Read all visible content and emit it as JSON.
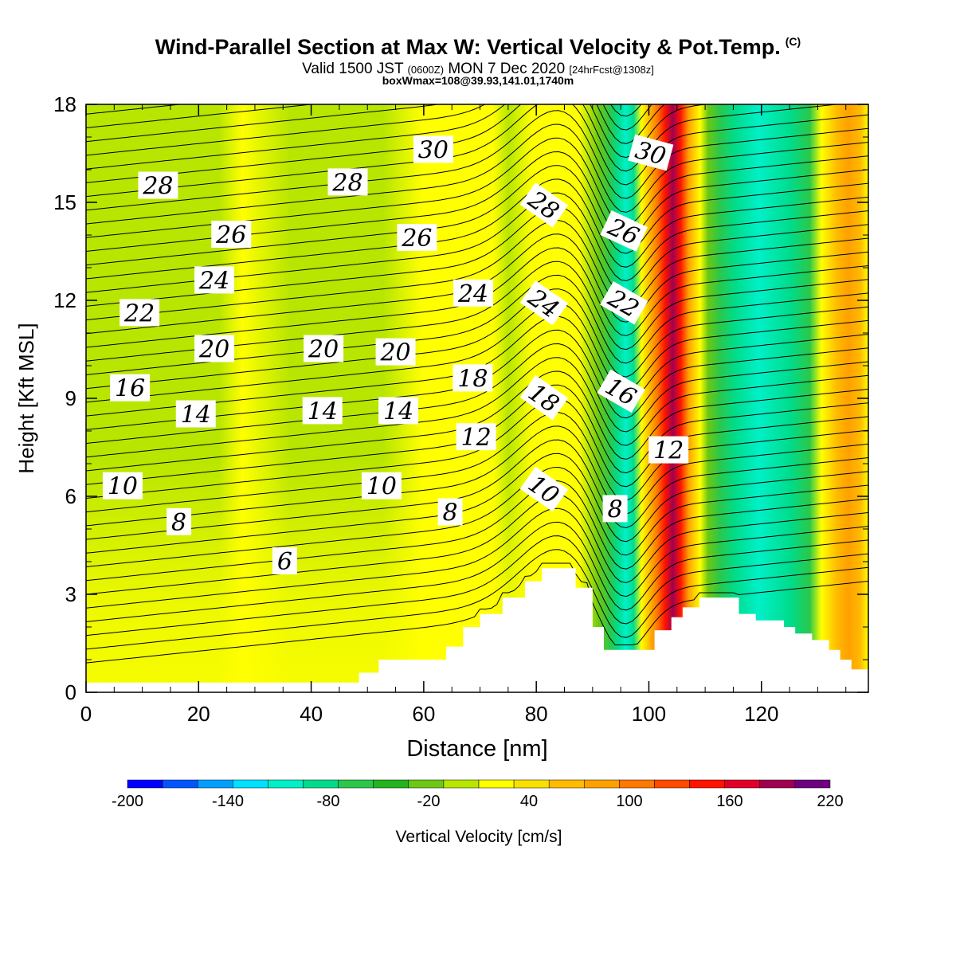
{
  "chart_data": {
    "type": "heatmap",
    "title": "Wind-Parallel Section at Max W: Vertical Velocity & Pot.Temp.",
    "copyright": "(C)",
    "subtitle_main": "Valid 1500 JST",
    "subtitle_utc": "(0600Z)",
    "subtitle_date": "MON 7 Dec 2020",
    "subtitle_fcst": "[24hrFcst@1308z]",
    "subtitle2": "boxWmax=108@39.93,141.01,1740m",
    "xlabel": "Distance [nm]",
    "ylabel": "Height [Kft MSL]",
    "xlim": [
      0,
      139
    ],
    "ylim": [
      0,
      18
    ],
    "xticks": [
      "0",
      "20",
      "40",
      "60",
      "80",
      "100",
      "120"
    ],
    "yticks": [
      "0",
      "3",
      "6",
      "9",
      "12",
      "15",
      "18"
    ],
    "colorbar": {
      "label": "Vertical Velocity [cm/s]",
      "ticks": [
        "-200",
        "-140",
        "-80",
        "-20",
        "40",
        "100",
        "160",
        "220"
      ],
      "colors": [
        "#0000ff",
        "#0055ff",
        "#00a0ff",
        "#00e0ff",
        "#00f0c8",
        "#00dc8c",
        "#2ac84a",
        "#22b31e",
        "#6cc814",
        "#b8e600",
        "#ffff00",
        "#f8e000",
        "#ffbb00",
        "#ffa000",
        "#ff7800",
        "#ff4a00",
        "#ff1400",
        "#e00028",
        "#a00050",
        "#6e0080"
      ]
    },
    "contour_labels": [
      {
        "text": "28",
        "x": 12.8,
        "y": 15.5,
        "rot": 0
      },
      {
        "text": "26",
        "x": 25.8,
        "y": 14.0,
        "rot": 0
      },
      {
        "text": "24",
        "x": 22.8,
        "y": 12.6,
        "rot": 0
      },
      {
        "text": "22",
        "x": 9.5,
        "y": 11.6,
        "rot": 0
      },
      {
        "text": "20",
        "x": 22.8,
        "y": 10.5,
        "rot": 0
      },
      {
        "text": "16",
        "x": 7.8,
        "y": 9.3,
        "rot": 0
      },
      {
        "text": "14",
        "x": 19.5,
        "y": 8.5,
        "rot": 0
      },
      {
        "text": "10",
        "x": 6.5,
        "y": 6.3,
        "rot": 0
      },
      {
        "text": "8",
        "x": 16.5,
        "y": 5.2,
        "rot": 0
      },
      {
        "text": "6",
        "x": 35.3,
        "y": 4.0,
        "rot": 0
      },
      {
        "text": "30",
        "x": 61.7,
        "y": 16.6,
        "rot": 0
      },
      {
        "text": "28",
        "x": 46.5,
        "y": 15.6,
        "rot": 0
      },
      {
        "text": "26",
        "x": 58.8,
        "y": 13.9,
        "rot": 0
      },
      {
        "text": "24",
        "x": 68.8,
        "y": 12.2,
        "rot": 0
      },
      {
        "text": "20",
        "x": 42.2,
        "y": 10.5,
        "rot": 0
      },
      {
        "text": "20",
        "x": 55.0,
        "y": 10.4,
        "rot": 0
      },
      {
        "text": "18",
        "x": 68.7,
        "y": 9.6,
        "rot": 0
      },
      {
        "text": "14",
        "x": 42.0,
        "y": 8.6,
        "rot": 0
      },
      {
        "text": "14",
        "x": 55.5,
        "y": 8.6,
        "rot": 0
      },
      {
        "text": "12",
        "x": 69.3,
        "y": 7.8,
        "rot": 0
      },
      {
        "text": "10",
        "x": 52.5,
        "y": 6.3,
        "rot": 0
      },
      {
        "text": "8",
        "x": 64.7,
        "y": 5.5,
        "rot": 0
      },
      {
        "text": "28",
        "x": 81.3,
        "y": 14.9,
        "rot": 35
      },
      {
        "text": "24",
        "x": 81.3,
        "y": 11.9,
        "rot": 35
      },
      {
        "text": "18",
        "x": 81.3,
        "y": 9.0,
        "rot": 35
      },
      {
        "text": "10",
        "x": 81.3,
        "y": 6.2,
        "rot": 35
      },
      {
        "text": "30",
        "x": 100.3,
        "y": 16.5,
        "rot": 15
      },
      {
        "text": "26",
        "x": 95.5,
        "y": 14.1,
        "rot": 25
      },
      {
        "text": "22",
        "x": 95.5,
        "y": 11.9,
        "rot": 30
      },
      {
        "text": "16",
        "x": 95.0,
        "y": 9.2,
        "rot": 30
      },
      {
        "text": "12",
        "x": 103.5,
        "y": 7.4,
        "rot": 0
      },
      {
        "text": "8",
        "x": 94.0,
        "y": 5.6,
        "rot": 0
      }
    ],
    "terrain": [
      [
        0,
        0.3
      ],
      [
        48.5,
        0.3
      ],
      [
        48.5,
        0.6
      ],
      [
        52,
        0.6
      ],
      [
        52,
        1.0
      ],
      [
        64,
        1.0
      ],
      [
        64,
        1.4
      ],
      [
        67,
        1.4
      ],
      [
        67,
        2.0
      ],
      [
        70,
        2.0
      ],
      [
        70,
        2.4
      ],
      [
        74,
        2.4
      ],
      [
        74,
        2.9
      ],
      [
        78,
        2.9
      ],
      [
        78,
        3.4
      ],
      [
        81,
        3.4
      ],
      [
        81,
        3.8
      ],
      [
        87,
        3.8
      ],
      [
        87,
        3.2
      ],
      [
        90,
        3.2
      ],
      [
        90,
        2.0
      ],
      [
        92,
        2.0
      ],
      [
        92,
        1.3
      ],
      [
        95,
        1.3
      ],
      [
        95,
        1.3
      ],
      [
        98,
        1.3
      ],
      [
        98,
        1.3
      ],
      [
        101,
        1.3
      ],
      [
        101,
        1.9
      ],
      [
        104,
        1.9
      ],
      [
        104,
        2.3
      ],
      [
        106,
        2.3
      ],
      [
        106,
        2.6
      ],
      [
        109,
        2.6
      ],
      [
        109,
        2.9
      ],
      [
        116,
        2.9
      ],
      [
        116,
        2.4
      ],
      [
        119,
        2.4
      ],
      [
        119,
        2.2
      ],
      [
        124,
        2.2
      ],
      [
        124,
        2.0
      ],
      [
        126,
        2.0
      ],
      [
        126,
        1.8
      ],
      [
        129,
        1.8
      ],
      [
        129,
        1.6
      ],
      [
        132,
        1.6
      ],
      [
        132,
        1.3
      ],
      [
        134,
        1.3
      ],
      [
        134,
        1.0
      ],
      [
        136,
        1.0
      ],
      [
        136,
        0.7
      ],
      [
        139,
        0.7
      ]
    ]
  }
}
